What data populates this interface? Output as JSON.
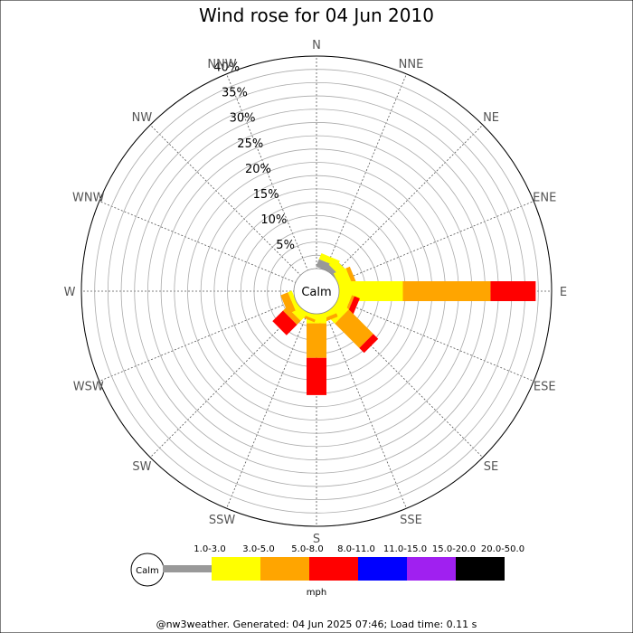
{
  "chart_data": {
    "type": "wind-rose",
    "title": "Wind rose for 04 Jun 2010",
    "directions": [
      "N",
      "NNE",
      "NE",
      "ENE",
      "E",
      "ESE",
      "SE",
      "SSE",
      "S",
      "SSW",
      "SW",
      "WSW",
      "W",
      "WNW",
      "NW",
      "NNW"
    ],
    "radial_ticks": [
      "5%",
      "10%",
      "15%",
      "20%",
      "25%",
      "30%",
      "35%",
      "40%"
    ],
    "rmax_percent": 40,
    "calm_label": "Calm",
    "speed_bins": [
      {
        "label": "1.0-3.0",
        "color": "#999999"
      },
      {
        "label": "3.0-5.0",
        "color": "#ffff00"
      },
      {
        "label": "5.0-8.0",
        "color": "#ffa500"
      },
      {
        "label": "8.0-11.0",
        "color": "#ff0000"
      },
      {
        "label": "11.0-15.0",
        "color": "#0000ff"
      },
      {
        "label": "15.0-20.0",
        "color": "#a020f0"
      },
      {
        "label": "20.0-50.0",
        "color": "#000000"
      }
    ],
    "units": "mph",
    "series": [
      {
        "dir": "NNE",
        "values": [
          1.5,
          1.2,
          0,
          0,
          0,
          0,
          0
        ]
      },
      {
        "dir": "NE",
        "values": [
          0.9,
          1.6,
          0,
          0,
          0,
          0,
          0
        ]
      },
      {
        "dir": "ENE",
        "values": [
          0,
          2.5,
          0.8,
          0,
          0,
          0,
          0
        ]
      },
      {
        "dir": "E",
        "values": [
          0,
          12.0,
          16.5,
          8.5,
          0,
          0,
          0
        ]
      },
      {
        "dir": "ESE",
        "values": [
          0,
          2.2,
          0.5,
          1.1,
          0,
          0,
          0
        ]
      },
      {
        "dir": "SE",
        "values": [
          0,
          2.5,
          6.5,
          1.3,
          0,
          0,
          0
        ]
      },
      {
        "dir": "SSE",
        "values": [
          0,
          1.0,
          0.7,
          0,
          0,
          0,
          0
        ]
      },
      {
        "dir": "S",
        "values": [
          0,
          1.8,
          6.5,
          7.0,
          0,
          0,
          0
        ]
      },
      {
        "dir": "SSW",
        "values": [
          0,
          0.8,
          0.5,
          0,
          0,
          0,
          0
        ]
      },
      {
        "dir": "SW",
        "values": [
          0,
          1.8,
          1.0,
          2.8,
          0,
          0,
          0
        ]
      },
      {
        "dir": "WSW",
        "values": [
          0,
          0.8,
          1.5,
          0,
          0,
          0,
          0
        ]
      }
    ]
  },
  "footer": "@nw3weather. Generated: 04 Jun 2025 07:46; Load time: 0.11 s"
}
